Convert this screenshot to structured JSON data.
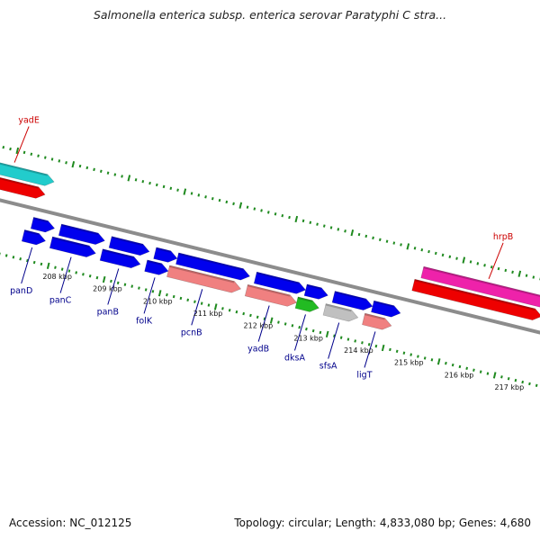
{
  "title": "Salmonella enterica subsp. enterica serovar Paratyphi C stra...",
  "footer": {
    "accession": "Accession: NC_012125",
    "topology": "Topology: circular; Length: 4,833,080 bp; Genes: 4,680"
  },
  "colors": {
    "backbone": "#8c8c8c",
    "ticks": "#1f8a1f",
    "blue_gene": "#0000ee",
    "label_blue": "#00008b",
    "label_red": "#cc0000",
    "salmon": "#f08080",
    "green_gene": "#22bb22",
    "gray_gene": "#c0c0c0",
    "cyan_gene": "#22cccc",
    "red_gene": "#ee0000",
    "magenta_gene": "#ee22aa"
  },
  "kbp_ticks": [
    {
      "label": "208 kbp",
      "pos": 0.13
    },
    {
      "label": "209 kbp",
      "pos": 0.22
    },
    {
      "label": "210 kbp",
      "pos": 0.31
    },
    {
      "label": "211 kbp",
      "pos": 0.4
    },
    {
      "label": "212 kbp",
      "pos": 0.49
    },
    {
      "label": "213 kbp",
      "pos": 0.58
    },
    {
      "label": "214 kbp",
      "pos": 0.67
    },
    {
      "label": "215 kbp",
      "pos": 0.76
    },
    {
      "label": "216 kbp",
      "pos": 0.85
    },
    {
      "label": "217 kbp",
      "pos": 0.94
    }
  ],
  "genes_outer": [
    {
      "label": "yadE",
      "color": "cyan_gene",
      "from": -0.05,
      "to": 0.1,
      "lane": -2
    },
    {
      "label": "",
      "color": "red_gene",
      "from": -0.05,
      "to": 0.09,
      "lane": -1
    },
    {
      "label": "hrpB",
      "color": "magenta_gene",
      "from": 0.76,
      "to": 0.99,
      "lane": -2
    },
    {
      "label": "",
      "color": "red_gene",
      "from": 0.75,
      "to": 0.98,
      "lane": -1
    }
  ],
  "genes_inner": [
    {
      "label": "",
      "color": "blue_gene",
      "from": 0.08,
      "to": 0.12,
      "lane": 1
    },
    {
      "label": "",
      "color": "blue_gene",
      "from": 0.13,
      "to": 0.21,
      "lane": 1
    },
    {
      "label": "",
      "color": "blue_gene",
      "from": 0.22,
      "to": 0.29,
      "lane": 1
    },
    {
      "label": "",
      "color": "blue_gene",
      "from": 0.3,
      "to": 0.34,
      "lane": 1
    },
    {
      "label": "",
      "color": "blue_gene",
      "from": 0.34,
      "to": 0.47,
      "lane": 1
    },
    {
      "label": "",
      "color": "blue_gene",
      "from": 0.48,
      "to": 0.57,
      "lane": 1
    },
    {
      "label": "",
      "color": "blue_gene",
      "from": 0.57,
      "to": 0.61,
      "lane": 1
    },
    {
      "label": "",
      "color": "blue_gene",
      "from": 0.62,
      "to": 0.69,
      "lane": 1
    },
    {
      "label": "",
      "color": "blue_gene",
      "from": 0.69,
      "to": 0.74,
      "lane": 1
    },
    {
      "label": "panD",
      "color": "blue_gene",
      "from": 0.07,
      "to": 0.11,
      "lane": 2
    },
    {
      "label": "panC",
      "color": "blue_gene",
      "from": 0.12,
      "to": 0.2,
      "lane": 2
    },
    {
      "label": "panB",
      "color": "blue_gene",
      "from": 0.21,
      "to": 0.28,
      "lane": 2
    },
    {
      "label": "folK",
      "color": "blue_gene",
      "from": 0.29,
      "to": 0.33,
      "lane": 2
    },
    {
      "label": "pcnB",
      "color": "salmon",
      "from": 0.33,
      "to": 0.46,
      "lane": 2
    },
    {
      "label": "yadB",
      "color": "salmon",
      "from": 0.47,
      "to": 0.56,
      "lane": 2
    },
    {
      "label": "dksA",
      "color": "green_gene",
      "from": 0.56,
      "to": 0.6,
      "lane": 2
    },
    {
      "label": "sfsA",
      "color": "gray_gene",
      "from": 0.61,
      "to": 0.67,
      "lane": 2
    },
    {
      "label": "ligT",
      "color": "salmon",
      "from": 0.68,
      "to": 0.73,
      "lane": 2
    }
  ]
}
